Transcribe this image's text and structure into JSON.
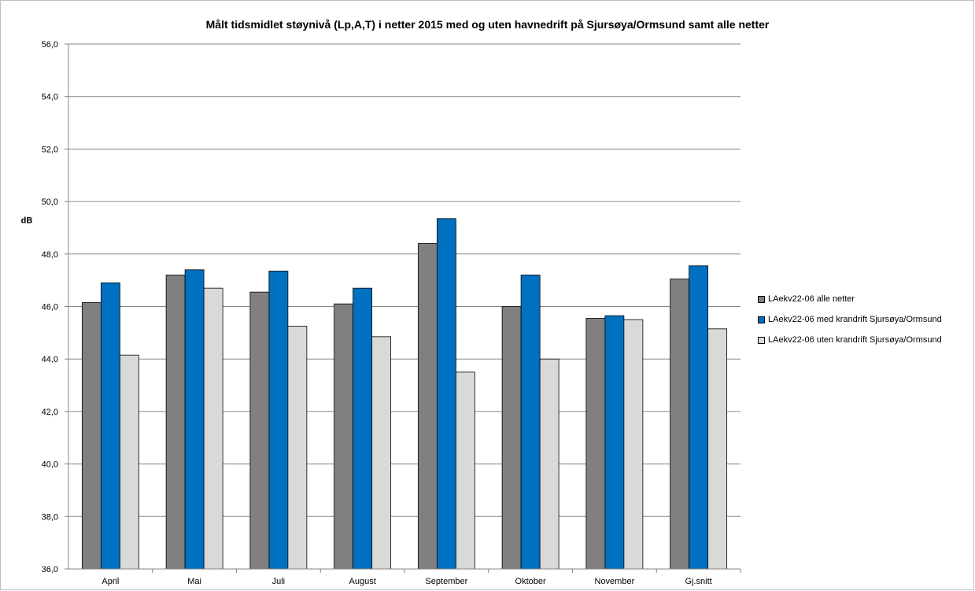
{
  "chart_data": {
    "type": "bar",
    "title": "Målt tidsmidlet støynivå (Lp,A,T) i netter 2015 med og uten havnedrift på Sjursøya/Ormsund samt alle netter",
    "xlabel": "",
    "ylabel": "dB",
    "ylim": [
      36,
      56
    ],
    "yticks": [
      "36,0",
      "38,0",
      "40,0",
      "42,0",
      "44,0",
      "46,0",
      "48,0",
      "50,0",
      "52,0",
      "54,0",
      "56,0"
    ],
    "grid": true,
    "legend_position": "right",
    "categories": [
      "April",
      "Mai",
      "Juli",
      "August",
      "September",
      "Oktober",
      "November",
      "Gj.snitt"
    ],
    "series": [
      {
        "name": "LAekv22-06 alle netter",
        "color": "#808080",
        "values": [
          46.15,
          47.2,
          46.55,
          46.1,
          48.4,
          46.0,
          45.55,
          47.05
        ]
      },
      {
        "name": "LAekv22-06  med krandrift Sjursøya/Ormsund",
        "color": "#0070c0",
        "values": [
          46.9,
          47.4,
          47.35,
          46.7,
          49.35,
          47.2,
          45.65,
          47.55
        ]
      },
      {
        "name": "LAekv22-06  uten krandrift Sjursøya/Ormsund",
        "color": "#d9d9d9",
        "values": [
          44.15,
          46.7,
          45.25,
          44.85,
          43.5,
          44.0,
          45.5,
          45.15
        ]
      }
    ]
  }
}
